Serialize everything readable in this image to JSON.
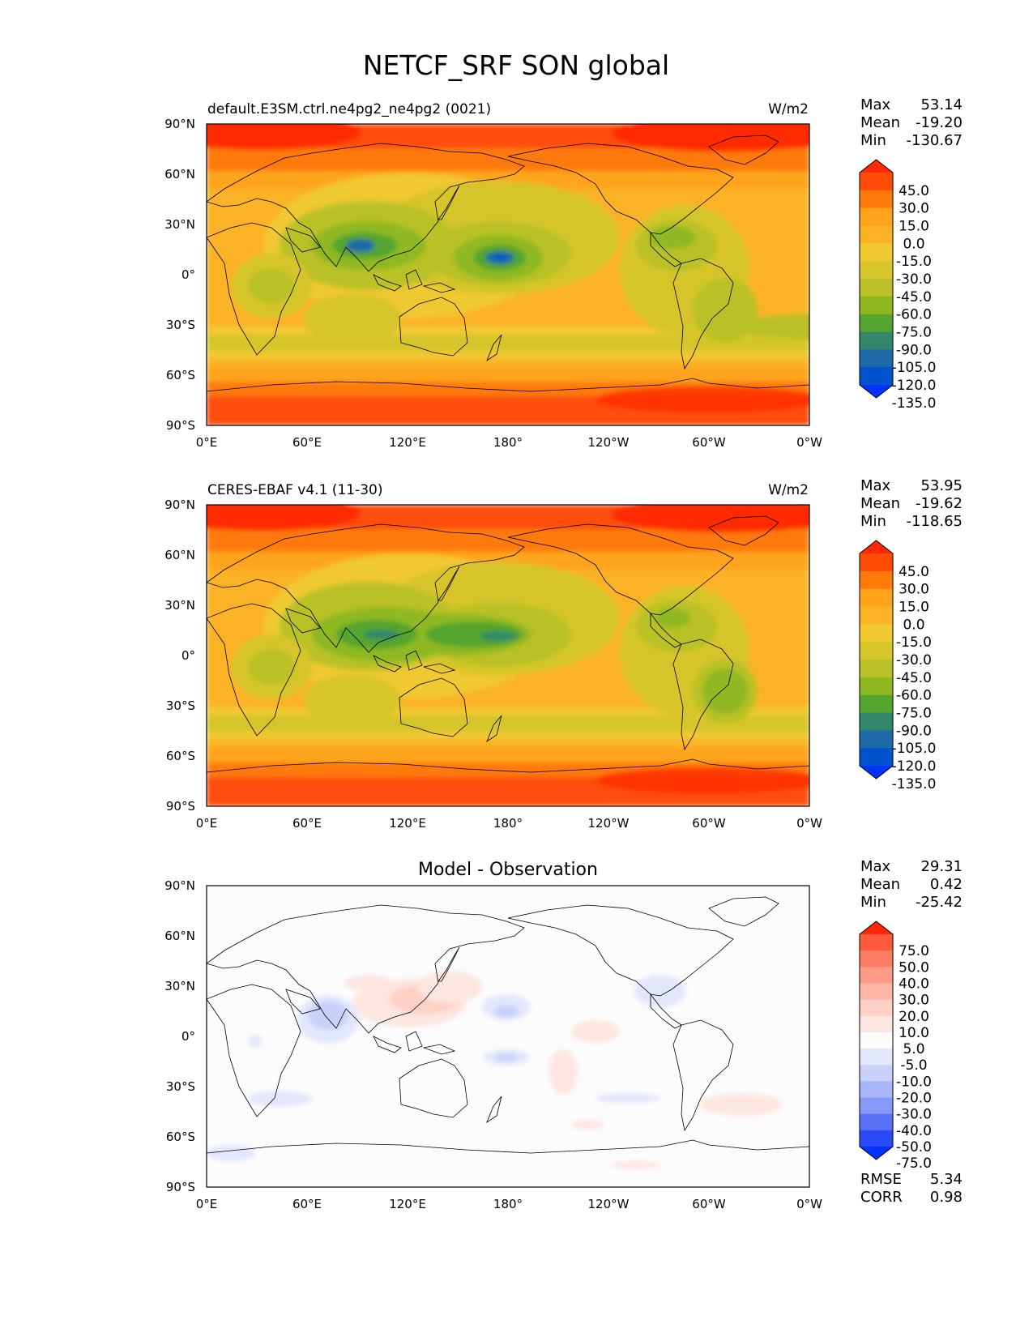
{
  "figure": {
    "title": "NETCF_SRF SON global"
  },
  "chart_data": [
    {
      "type": "heatmap",
      "name": "model",
      "subtitle": "default.E3SM.ctrl.ne4pg2_ne4pg2 (0021)",
      "units": "W/m2",
      "x_ticks": [
        "0°E",
        "60°E",
        "120°E",
        "180°",
        "120°W",
        "60°W",
        "0°W"
      ],
      "y_ticks": [
        "90°N",
        "60°N",
        "30°N",
        "0°",
        "30°S",
        "60°S",
        "90°S"
      ],
      "stats": [
        {
          "label": "Max",
          "value": "53.14"
        },
        {
          "label": "Mean",
          "value": "-19.20"
        },
        {
          "label": "Min",
          "value": "-130.67"
        }
      ],
      "colorbar": {
        "labels": [
          "45.0",
          "30.0",
          "15.0",
          "0.0",
          "-15.0",
          "-30.0",
          "-45.0",
          "-60.0",
          "-75.0",
          "-90.0",
          "-105.0",
          "-120.0",
          "-135.0"
        ],
        "colors": [
          "#ff2a05",
          "#ff4d08",
          "#ff7a0a",
          "#ffa41a",
          "#fbb225",
          "#f0c830",
          "#d6c52b",
          "#b9c127",
          "#8fb820",
          "#55a52e",
          "#33886b",
          "#1e6aa8",
          "#0052cf",
          "#0033ff"
        ]
      }
    },
    {
      "type": "heatmap",
      "name": "observation",
      "subtitle": "CERES-EBAF v4.1 (11-30)",
      "units": "W/m2",
      "x_ticks": [
        "0°E",
        "60°E",
        "120°E",
        "180°",
        "120°W",
        "60°W",
        "0°W"
      ],
      "y_ticks": [
        "90°N",
        "60°N",
        "30°N",
        "0°",
        "30°S",
        "60°S",
        "90°S"
      ],
      "stats": [
        {
          "label": "Max",
          "value": "53.95"
        },
        {
          "label": "Mean",
          "value": "-19.62"
        },
        {
          "label": "Min",
          "value": "-118.65"
        }
      ],
      "colorbar": {
        "labels": [
          "45.0",
          "30.0",
          "15.0",
          "0.0",
          "-15.0",
          "-30.0",
          "-45.0",
          "-60.0",
          "-75.0",
          "-90.0",
          "-105.0",
          "-120.0",
          "-135.0"
        ],
        "colors": [
          "#ff2a05",
          "#ff4d08",
          "#ff7a0a",
          "#ffa41a",
          "#fbb225",
          "#f0c830",
          "#d6c52b",
          "#b9c127",
          "#8fb820",
          "#55a52e",
          "#33886b",
          "#1e6aa8",
          "#0052cf",
          "#0033ff"
        ]
      }
    },
    {
      "type": "heatmap",
      "name": "difference",
      "subtitle": "Model - Observation",
      "units": "",
      "x_ticks": [
        "0°E",
        "60°E",
        "120°E",
        "180°",
        "120°W",
        "60°W",
        "0°W"
      ],
      "y_ticks": [
        "90°N",
        "60°N",
        "30°N",
        "0°",
        "30°S",
        "60°S",
        "90°S"
      ],
      "stats": [
        {
          "label": "Max",
          "value": "29.31"
        },
        {
          "label": "Mean",
          "value": "0.42"
        },
        {
          "label": "Min",
          "value": "-25.42"
        }
      ],
      "extra_stats": [
        {
          "label": "RMSE",
          "value": "5.34"
        },
        {
          "label": "CORR",
          "value": "0.98"
        }
      ],
      "colorbar": {
        "labels": [
          "75.0",
          "50.0",
          "40.0",
          "30.0",
          "20.0",
          "10.0",
          "5.0",
          "-5.0",
          "-10.0",
          "-20.0",
          "-30.0",
          "-40.0",
          "-50.0",
          "-75.0"
        ],
        "colors": [
          "#ff2a05",
          "#ff5a3c",
          "#ff7c64",
          "#ff9a86",
          "#ffb6a6",
          "#ffd0c5",
          "#fde6e1",
          "#fcfcfc",
          "#e3e7fc",
          "#c9d1fb",
          "#a9b6f9",
          "#8799f7",
          "#5a72f8",
          "#2b4bfb",
          "#0033ff"
        ]
      }
    }
  ]
}
